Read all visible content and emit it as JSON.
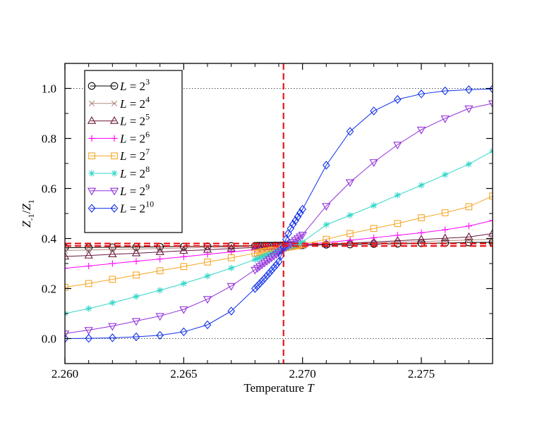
{
  "chart_data": {
    "type": "line",
    "xlabel_text": "Temperature ",
    "xlabel_var": "T",
    "ylabel_num": "Z",
    "ylabel_num_sub": "-1",
    "ylabel_sep": "/",
    "ylabel_den": "Z",
    "ylabel_den_sub": "1",
    "xlim": [
      2.26,
      2.278
    ],
    "ylim": [
      -0.1,
      1.1
    ],
    "xticks": [
      2.26,
      2.265,
      2.27,
      2.275
    ],
    "xtick_labels": [
      "2.260",
      "2.265",
      "2.270",
      "2.275"
    ],
    "yticks": [
      0.0,
      0.2,
      0.4,
      0.6,
      0.8,
      1.0
    ],
    "ytick_labels": [
      "0.0",
      "0.2",
      "0.4",
      "0.6",
      "0.8",
      "1.0"
    ],
    "reference_lines": {
      "dotted_y": [
        0.0,
        1.0
      ],
      "dashed_red_x": 2.2692,
      "dashed_red_y": [
        0.37,
        0.38
      ],
      "color": "#e8161b"
    },
    "legend_position": "top-left",
    "series": [
      {
        "name_base": "L = 2",
        "exponent": "3",
        "color": "#000000",
        "marker": "circle",
        "x": [
          2.26,
          2.261,
          2.262,
          2.263,
          2.264,
          2.265,
          2.266,
          2.267,
          2.268,
          2.2681,
          2.2682,
          2.2683,
          2.2684,
          2.2685,
          2.2686,
          2.2687,
          2.2688,
          2.2689,
          2.269,
          2.2691,
          2.2692,
          2.2693,
          2.2694,
          2.2695,
          2.2696,
          2.2697,
          2.2698,
          2.2699,
          2.27,
          2.271,
          2.272,
          2.273,
          2.274,
          2.275,
          2.276,
          2.277,
          2.278
        ],
        "y": [
          0.363,
          0.364,
          0.365,
          0.366,
          0.367,
          0.368,
          0.369,
          0.37,
          0.371,
          0.3711,
          0.3712,
          0.3713,
          0.3714,
          0.3715,
          0.3716,
          0.3717,
          0.3718,
          0.3719,
          0.372,
          0.3721,
          0.3722,
          0.3723,
          0.3724,
          0.3725,
          0.3726,
          0.3727,
          0.3728,
          0.3729,
          0.373,
          0.375,
          0.376,
          0.378,
          0.379,
          0.381,
          0.382,
          0.384,
          0.385
        ]
      },
      {
        "name_base": "L = 2",
        "exponent": "4",
        "color": "#b48c84",
        "marker": "x",
        "x": [
          2.26,
          2.261,
          2.262,
          2.263,
          2.264,
          2.265,
          2.266,
          2.267,
          2.268,
          2.2684,
          2.2688,
          2.269,
          2.2692,
          2.2694,
          2.2696,
          2.2698,
          2.27,
          2.271,
          2.272,
          2.273,
          2.274,
          2.275,
          2.276,
          2.277,
          2.278
        ],
        "y": [
          0.352,
          0.354,
          0.356,
          0.358,
          0.36,
          0.362,
          0.364,
          0.366,
          0.369,
          0.37,
          0.371,
          0.372,
          0.372,
          0.373,
          0.373,
          0.374,
          0.375,
          0.377,
          0.38,
          0.382,
          0.385,
          0.388,
          0.391,
          0.394,
          0.397
        ]
      },
      {
        "name_base": "L = 2",
        "exponent": "5",
        "color": "#6b1a3c",
        "marker": "triangle",
        "x": [
          2.26,
          2.261,
          2.262,
          2.263,
          2.264,
          2.265,
          2.266,
          2.267,
          2.268,
          2.2681,
          2.2682,
          2.2683,
          2.2684,
          2.2685,
          2.2686,
          2.2687,
          2.2688,
          2.2689,
          2.269,
          2.2691,
          2.2692,
          2.2693,
          2.2694,
          2.2695,
          2.2696,
          2.2697,
          2.2698,
          2.2699,
          2.27,
          2.271,
          2.272,
          2.273,
          2.274,
          2.275,
          2.276,
          2.277,
          2.278
        ],
        "y": [
          0.328,
          0.332,
          0.337,
          0.341,
          0.346,
          0.351,
          0.355,
          0.36,
          0.364,
          0.3645,
          0.365,
          0.3654,
          0.3659,
          0.3663,
          0.3668,
          0.3672,
          0.3677,
          0.3681,
          0.3686,
          0.369,
          0.3695,
          0.37,
          0.3704,
          0.3709,
          0.3713,
          0.3718,
          0.3722,
          0.3727,
          0.373,
          0.377,
          0.382,
          0.386,
          0.391,
          0.396,
          0.401,
          0.406,
          0.42
        ]
      },
      {
        "name_base": "L = 2",
        "exponent": "6",
        "color": "#ff00ff",
        "marker": "plus",
        "x": [
          2.26,
          2.261,
          2.262,
          2.263,
          2.264,
          2.265,
          2.266,
          2.267,
          2.268,
          2.2682,
          2.2684,
          2.2686,
          2.2688,
          2.269,
          2.2692,
          2.2694,
          2.2696,
          2.2698,
          2.27,
          2.271,
          2.272,
          2.273,
          2.274,
          2.275,
          2.276,
          2.277,
          2.278
        ],
        "y": [
          0.281,
          0.29,
          0.3,
          0.309,
          0.318,
          0.327,
          0.337,
          0.346,
          0.356,
          0.357,
          0.359,
          0.361,
          0.363,
          0.365,
          0.367,
          0.369,
          0.371,
          0.373,
          0.375,
          0.384,
          0.393,
          0.403,
          0.413,
          0.423,
          0.435,
          0.45,
          0.472
        ]
      },
      {
        "name_base": "L = 2",
        "exponent": "7",
        "color": "#f5a623",
        "marker": "square",
        "x": [
          2.26,
          2.261,
          2.262,
          2.263,
          2.264,
          2.265,
          2.266,
          2.267,
          2.268,
          2.2681,
          2.2682,
          2.2683,
          2.2684,
          2.2685,
          2.2686,
          2.2687,
          2.2688,
          2.2689,
          2.269,
          2.2691,
          2.2692,
          2.2693,
          2.2694,
          2.2695,
          2.2696,
          2.2697,
          2.2698,
          2.2699,
          2.27,
          2.271,
          2.272,
          2.273,
          2.274,
          2.275,
          2.276,
          2.277,
          2.278
        ],
        "y": [
          0.205,
          0.22,
          0.237,
          0.254,
          0.271,
          0.288,
          0.306,
          0.323,
          0.341,
          0.3428,
          0.3445,
          0.3463,
          0.348,
          0.3498,
          0.3515,
          0.3533,
          0.355,
          0.3568,
          0.3585,
          0.3603,
          0.362,
          0.3638,
          0.3655,
          0.3673,
          0.369,
          0.3708,
          0.3725,
          0.3743,
          0.376,
          0.397,
          0.42,
          0.44,
          0.46,
          0.483,
          0.503,
          0.527,
          0.57
        ]
      },
      {
        "name_base": "L = 2",
        "exponent": "8",
        "color": "#33d6c8",
        "marker": "star",
        "x": [
          2.26,
          2.261,
          2.262,
          2.263,
          2.264,
          2.265,
          2.266,
          2.267,
          2.268,
          2.2681,
          2.2682,
          2.2683,
          2.2684,
          2.2685,
          2.2686,
          2.2687,
          2.2688,
          2.2689,
          2.269,
          2.2691,
          2.2692,
          2.2693,
          2.2694,
          2.2695,
          2.2696,
          2.2697,
          2.2698,
          2.2699,
          2.27,
          2.271,
          2.272,
          2.273,
          2.274,
          2.275,
          2.276,
          2.277,
          2.278
        ],
        "y": [
          0.1,
          0.12,
          0.143,
          0.168,
          0.193,
          0.22,
          0.25,
          0.282,
          0.316,
          0.3195,
          0.323,
          0.3265,
          0.33,
          0.3335,
          0.337,
          0.3405,
          0.344,
          0.3475,
          0.351,
          0.3545,
          0.358,
          0.3615,
          0.365,
          0.3685,
          0.372,
          0.3755,
          0.379,
          0.3825,
          0.386,
          0.455,
          0.493,
          0.532,
          0.573,
          0.613,
          0.655,
          0.697,
          0.75
        ]
      },
      {
        "name_base": "L = 2",
        "exponent": "9",
        "color": "#9130d9",
        "marker": "triangle-down",
        "x": [
          2.26,
          2.261,
          2.262,
          2.263,
          2.264,
          2.265,
          2.266,
          2.267,
          2.268,
          2.2681,
          2.2682,
          2.2683,
          2.2684,
          2.2685,
          2.2686,
          2.2687,
          2.2688,
          2.2689,
          2.269,
          2.2691,
          2.2692,
          2.2693,
          2.2694,
          2.2695,
          2.2696,
          2.2697,
          2.2698,
          2.2699,
          2.27,
          2.271,
          2.272,
          2.273,
          2.274,
          2.275,
          2.276,
          2.277,
          2.278
        ],
        "y": [
          0.02,
          0.034,
          0.05,
          0.07,
          0.09,
          0.117,
          0.158,
          0.21,
          0.275,
          0.282,
          0.289,
          0.296,
          0.303,
          0.31,
          0.317,
          0.324,
          0.331,
          0.338,
          0.345,
          0.352,
          0.359,
          0.366,
          0.373,
          0.38,
          0.387,
          0.394,
          0.401,
          0.408,
          0.415,
          0.53,
          0.625,
          0.705,
          0.775,
          0.835,
          0.88,
          0.92,
          0.94
        ]
      },
      {
        "name_base": "L = 2",
        "exponent": "10",
        "color": "#1030e8",
        "marker": "diamond",
        "x": [
          2.26,
          2.261,
          2.262,
          2.263,
          2.264,
          2.265,
          2.266,
          2.267,
          2.268,
          2.2681,
          2.2682,
          2.2683,
          2.2684,
          2.2685,
          2.2686,
          2.2687,
          2.2688,
          2.2689,
          2.269,
          2.2691,
          2.2692,
          2.2693,
          2.2694,
          2.2695,
          2.2696,
          2.2697,
          2.2698,
          2.2699,
          2.27,
          2.271,
          2.272,
          2.273,
          2.274,
          2.275,
          2.276,
          2.277,
          2.278
        ],
        "y": [
          0.0,
          0.001,
          0.003,
          0.007,
          0.013,
          0.027,
          0.055,
          0.11,
          0.2,
          0.21,
          0.22,
          0.23,
          0.24,
          0.251,
          0.262,
          0.273,
          0.284,
          0.295,
          0.307,
          0.332,
          0.366,
          0.397,
          0.42,
          0.44,
          0.457,
          0.472,
          0.487,
          0.502,
          0.517,
          0.693,
          0.828,
          0.91,
          0.956,
          0.978,
          0.99,
          0.995,
          0.998
        ]
      }
    ]
  }
}
